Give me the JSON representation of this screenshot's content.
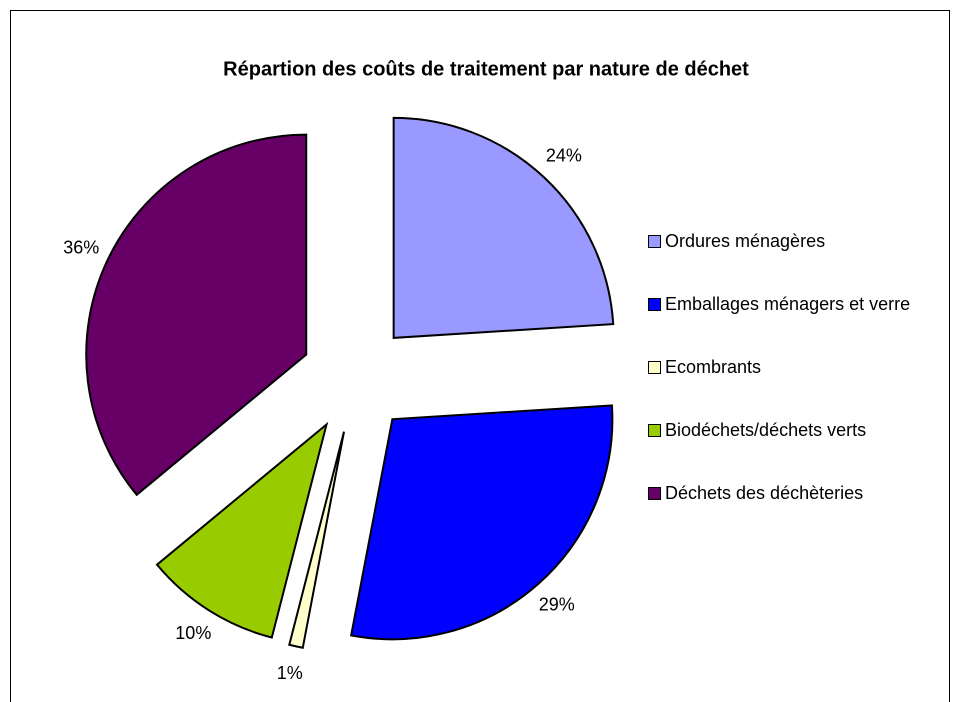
{
  "chart_data": {
    "type": "pie",
    "title": "Répartion des coûts de traitement par nature de déchet",
    "categories": [
      "Ordures ménagères",
      "Emballages ménagers et verre",
      "Ecombrants",
      "Biodéchets/déchets verts",
      "Déchets des déchèteries"
    ],
    "values": [
      24,
      29,
      1,
      10,
      36
    ],
    "value_labels": [
      "24%",
      "29%",
      "1%",
      "10%",
      "36%"
    ],
    "colors": [
      "#9999ff",
      "#0000ff",
      "#ffffcc",
      "#99cc00",
      "#660066"
    ],
    "legend": "right"
  }
}
